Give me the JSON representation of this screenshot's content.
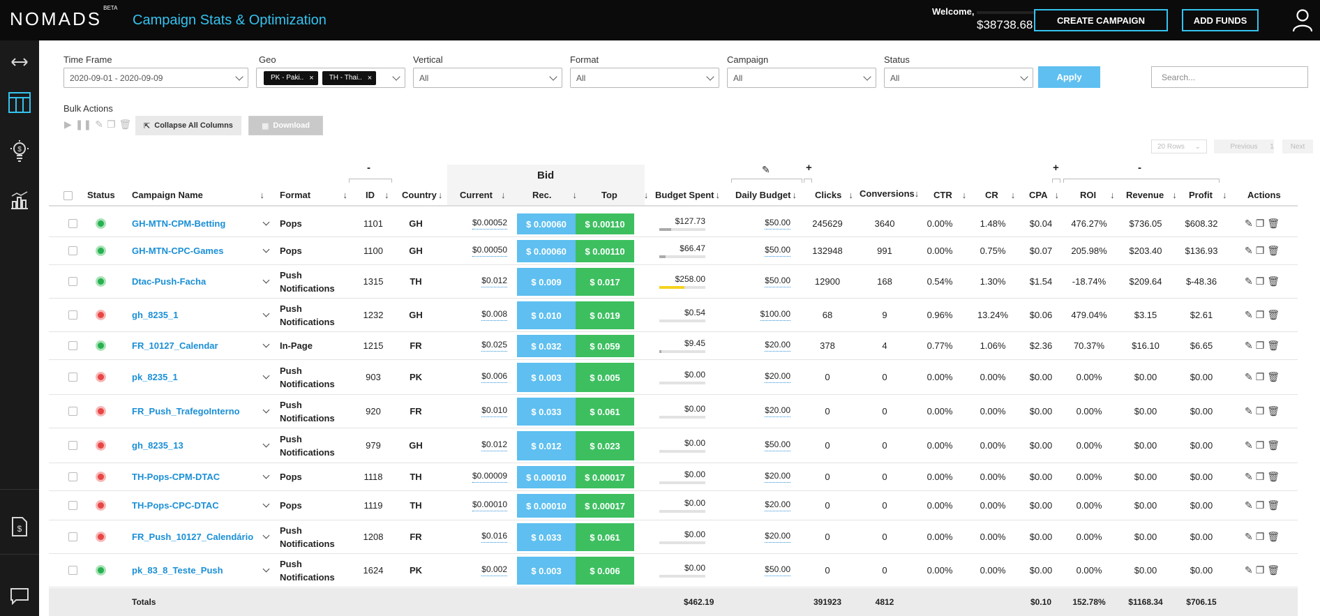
{
  "header": {
    "logo": "NOMADS",
    "logo_badge": "BETA",
    "page_title": "Campaign Stats & Optimization",
    "welcome": "Welcome,",
    "balance": "$38738.68",
    "create_campaign": "CREATE CAMPAIGN",
    "add_funds": "ADD FUNDS"
  },
  "sidebar": {
    "icons": [
      "expand-arrows-icon",
      "table-icon",
      "lightbulb-money-icon",
      "chart-icon",
      "invoice-icon",
      "chat-icon"
    ]
  },
  "filters": {
    "time_frame_label": "Time Frame",
    "time_frame_value": "2020-09-01 - 2020-09-09",
    "geo_label": "Geo",
    "geo_chips": [
      "PK - Paki..",
      "TH - Thai.."
    ],
    "vertical_label": "Vertical",
    "vertical_value": "All",
    "format_label": "Format",
    "format_value": "All",
    "campaign_label": "Campaign",
    "campaign_value": "All",
    "status_label": "Status",
    "status_value": "All",
    "apply": "Apply",
    "search_placeholder": "Search..."
  },
  "bulk": {
    "label": "Bulk Actions",
    "collapse": "Collapse All Columns",
    "download": "Download"
  },
  "pager": {
    "rows": "20 Rows",
    "previous": "Previous",
    "page": "1",
    "next": "Next"
  },
  "table": {
    "groups": {
      "id_toggle": "-",
      "bid": "Bid",
      "budget_toggle": "+",
      "cpa_toggle": "+",
      "roi_toggle": "-"
    },
    "columns": {
      "status": "Status",
      "name": "Campaign Name",
      "format": "Format",
      "id": "ID",
      "country": "Country",
      "current": "Current",
      "rec": "Rec.",
      "top": "Top",
      "budget_spent": "Budget Spent",
      "daily_budget": "Daily Budget",
      "clicks": "Clicks",
      "conversions": "Conversions",
      "ctr": "CTR",
      "cr": "CR",
      "cpa": "CPA",
      "roi": "ROI",
      "revenue": "Revenue",
      "profit": "Profit",
      "actions": "Actions"
    },
    "rows": [
      {
        "status": "active",
        "name": "GH-MTN-CPM-Betting",
        "format": "Pops",
        "id": "1101",
        "country": "GH",
        "current": "$0.00052",
        "rec": "$ 0.00060",
        "top": "$ 0.00110",
        "spent": "$127.73",
        "spent_frac": 0.25,
        "daily": "$50.00",
        "clicks": "245629",
        "conv": "3640",
        "ctr": "0.00%",
        "cr": "1.48%",
        "cpa": "$0.04",
        "roi": "476.27%",
        "revenue": "$736.05",
        "profit": "$608.32"
      },
      {
        "status": "active",
        "name": "GH-MTN-CPC-Games",
        "format": "Pops",
        "id": "1100",
        "country": "GH",
        "current": "$0.00050",
        "rec": "$ 0.00060",
        "top": "$ 0.00110",
        "spent": "$66.47",
        "spent_frac": 0.13,
        "daily": "$50.00",
        "clicks": "132948",
        "conv": "991",
        "ctr": "0.00%",
        "cr": "0.75%",
        "cpa": "$0.07",
        "roi": "205.98%",
        "revenue": "$203.40",
        "profit": "$136.93"
      },
      {
        "status": "active",
        "name": "Dtac-Push-Facha",
        "format": "Push Notifications",
        "id": "1315",
        "country": "TH",
        "current": "$0.012",
        "rec": "$ 0.009",
        "top": "$ 0.017",
        "spent": "$258.00",
        "spent_frac": 0.55,
        "spent_color": "yellow",
        "daily": "$50.00",
        "clicks": "12900",
        "conv": "168",
        "ctr": "0.54%",
        "cr": "1.30%",
        "cpa": "$1.54",
        "roi": "-18.74%",
        "revenue": "$209.64",
        "profit": "$-48.36"
      },
      {
        "status": "paused",
        "name": "gh_8235_1",
        "format": "Push Notifications",
        "id": "1232",
        "country": "GH",
        "current": "$0.008",
        "rec": "$ 0.010",
        "top": "$ 0.019",
        "spent": "$0.54",
        "spent_frac": 0,
        "daily": "$100.00",
        "clicks": "68",
        "conv": "9",
        "ctr": "0.96%",
        "cr": "13.24%",
        "cpa": "$0.06",
        "roi": "479.04%",
        "revenue": "$3.15",
        "profit": "$2.61"
      },
      {
        "status": "active",
        "name": "FR_10127_Calendar",
        "format": "In-Page",
        "id": "1215",
        "country": "FR",
        "current": "$0.025",
        "rec": "$ 0.032",
        "top": "$ 0.059",
        "spent": "$9.45",
        "spent_frac": 0.05,
        "daily": "$20.00",
        "clicks": "378",
        "conv": "4",
        "ctr": "0.77%",
        "cr": "1.06%",
        "cpa": "$2.36",
        "roi": "70.37%",
        "revenue": "$16.10",
        "profit": "$6.65"
      },
      {
        "status": "paused",
        "name": "pk_8235_1",
        "format": "Push Notifications",
        "id": "903",
        "country": "PK",
        "current": "$0.006",
        "rec": "$ 0.003",
        "top": "$ 0.005",
        "spent": "$0.00",
        "spent_frac": 0,
        "daily": "$20.00",
        "clicks": "0",
        "conv": "0",
        "ctr": "0.00%",
        "cr": "0.00%",
        "cpa": "$0.00",
        "roi": "0.00%",
        "revenue": "$0.00",
        "profit": "$0.00"
      },
      {
        "status": "paused",
        "name": "FR_Push_TrafegoInterno",
        "format": "Push Notifications",
        "id": "920",
        "country": "FR",
        "current": "$0.010",
        "rec": "$ 0.033",
        "top": "$ 0.061",
        "spent": "$0.00",
        "spent_frac": 0,
        "daily": "$20.00",
        "clicks": "0",
        "conv": "0",
        "ctr": "0.00%",
        "cr": "0.00%",
        "cpa": "$0.00",
        "roi": "0.00%",
        "revenue": "$0.00",
        "profit": "$0.00"
      },
      {
        "status": "paused",
        "name": "gh_8235_13",
        "format": "Push Notifications",
        "id": "979",
        "country": "GH",
        "current": "$0.012",
        "rec": "$ 0.012",
        "top": "$ 0.023",
        "spent": "$0.00",
        "spent_frac": 0,
        "daily": "$50.00",
        "clicks": "0",
        "conv": "0",
        "ctr": "0.00%",
        "cr": "0.00%",
        "cpa": "$0.00",
        "roi": "0.00%",
        "revenue": "$0.00",
        "profit": "$0.00"
      },
      {
        "status": "paused",
        "name": "TH-Pops-CPM-DTAC",
        "format": "Pops",
        "id": "1118",
        "country": "TH",
        "current": "$0.00009",
        "rec": "$ 0.00010",
        "top": "$ 0.00017",
        "spent": "$0.00",
        "spent_frac": 0,
        "daily": "$20.00",
        "clicks": "0",
        "conv": "0",
        "ctr": "0.00%",
        "cr": "0.00%",
        "cpa": "$0.00",
        "roi": "0.00%",
        "revenue": "$0.00",
        "profit": "$0.00"
      },
      {
        "status": "paused",
        "name": "TH-Pops-CPC-DTAC",
        "format": "Pops",
        "id": "1119",
        "country": "TH",
        "current": "$0.00010",
        "rec": "$ 0.00010",
        "top": "$ 0.00017",
        "spent": "$0.00",
        "spent_frac": 0,
        "daily": "$20.00",
        "clicks": "0",
        "conv": "0",
        "ctr": "0.00%",
        "cr": "0.00%",
        "cpa": "$0.00",
        "roi": "0.00%",
        "revenue": "$0.00",
        "profit": "$0.00"
      },
      {
        "status": "paused",
        "name": "FR_Push_10127_Calendário",
        "format": "Push Notifications",
        "id": "1208",
        "country": "FR",
        "current": "$0.016",
        "rec": "$ 0.033",
        "top": "$ 0.061",
        "spent": "$0.00",
        "spent_frac": 0,
        "daily": "$20.00",
        "clicks": "0",
        "conv": "0",
        "ctr": "0.00%",
        "cr": "0.00%",
        "cpa": "$0.00",
        "roi": "0.00%",
        "revenue": "$0.00",
        "profit": "$0.00"
      },
      {
        "status": "active",
        "name": "pk_83_8_Teste_Push",
        "format": "Push Notifications",
        "id": "1624",
        "country": "PK",
        "current": "$0.002",
        "rec": "$ 0.003",
        "top": "$ 0.006",
        "spent": "$0.00",
        "spent_frac": 0,
        "daily": "$50.00",
        "clicks": "0",
        "conv": "0",
        "ctr": "0.00%",
        "cr": "0.00%",
        "cpa": "$0.00",
        "roi": "0.00%",
        "revenue": "$0.00",
        "profit": "$0.00"
      }
    ],
    "totals": {
      "label": "Totals",
      "spent": "$462.19",
      "clicks": "391923",
      "conv": "4812",
      "cpa": "$0.10",
      "roi": "152.78%",
      "revenue": "$1168.34",
      "profit": "$706.15"
    }
  },
  "colors": {
    "accent": "#35c3f0",
    "rec": "#5ebff0",
    "top": "#3dbf60",
    "link": "#1a8fd6",
    "active": "#27b052",
    "paused": "#e84545"
  }
}
